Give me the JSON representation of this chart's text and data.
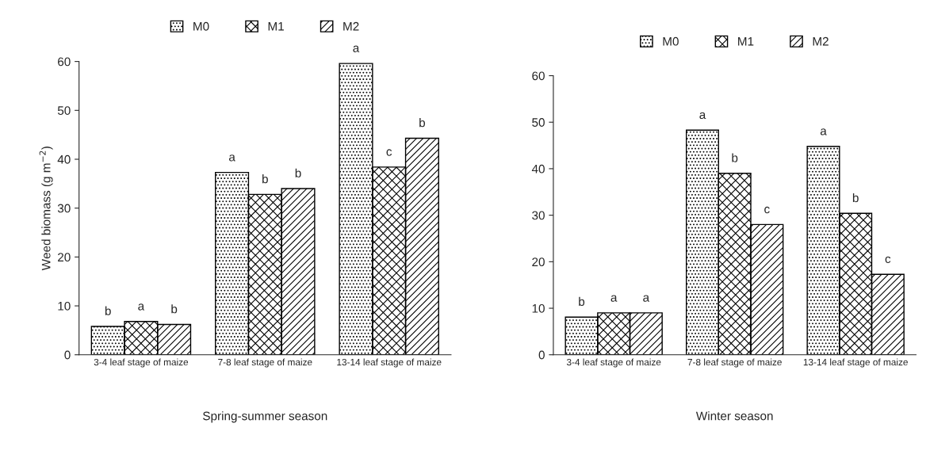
{
  "chart_data": [
    {
      "type": "bar",
      "xlabel": "Spring-summer season",
      "ylabel": "Weed biomass (g m$^{−2}$)",
      "categories": [
        "3-4 leaf stage of maize",
        "7-8 leaf stage of maize",
        "13-14 leaf stage of maize"
      ],
      "series": [
        {
          "name": "M0",
          "color": "#000000",
          "values": [
            5.8,
            37.3,
            59.6
          ],
          "value_labels": [
            "b",
            "a",
            "a"
          ]
        },
        {
          "name": "M1",
          "color": "#000000",
          "values": [
            6.8,
            32.8,
            38.4
          ],
          "value_labels": [
            "a",
            "b",
            "c"
          ]
        },
        {
          "name": "M2",
          "color": "#000000",
          "values": [
            6.2,
            34.0,
            44.3
          ],
          "value_labels": [
            "b",
            "b",
            "b"
          ]
        }
      ],
      "ylim": [
        0,
        60
      ],
      "yticks": [
        0,
        10,
        20,
        30,
        40,
        50,
        60
      ],
      "grid": false,
      "legend": "top"
    },
    {
      "type": "bar",
      "xlabel": "Winter season",
      "categories": [
        "3-4 leaf stage of maize",
        "7-8 leaf stage of maize",
        "13-14 leaf stage of maize"
      ],
      "series": [
        {
          "name": "M0",
          "color": "#000000",
          "values": [
            8.1,
            48.3,
            44.8
          ],
          "value_labels": [
            "b",
            "a",
            "a"
          ]
        },
        {
          "name": "M1",
          "color": "#000000",
          "values": [
            9.0,
            39.0,
            30.4
          ],
          "value_labels": [
            "a",
            "b",
            "b"
          ]
        },
        {
          "name": "M2",
          "color": "#000000",
          "values": [
            9.0,
            28.0,
            17.3
          ],
          "value_labels": [
            "a",
            "c",
            "c"
          ]
        }
      ],
      "ylim": [
        0,
        60
      ],
      "yticks": [
        0,
        10,
        20,
        30,
        40,
        50,
        60
      ],
      "grid": false,
      "legend": "top"
    }
  ]
}
